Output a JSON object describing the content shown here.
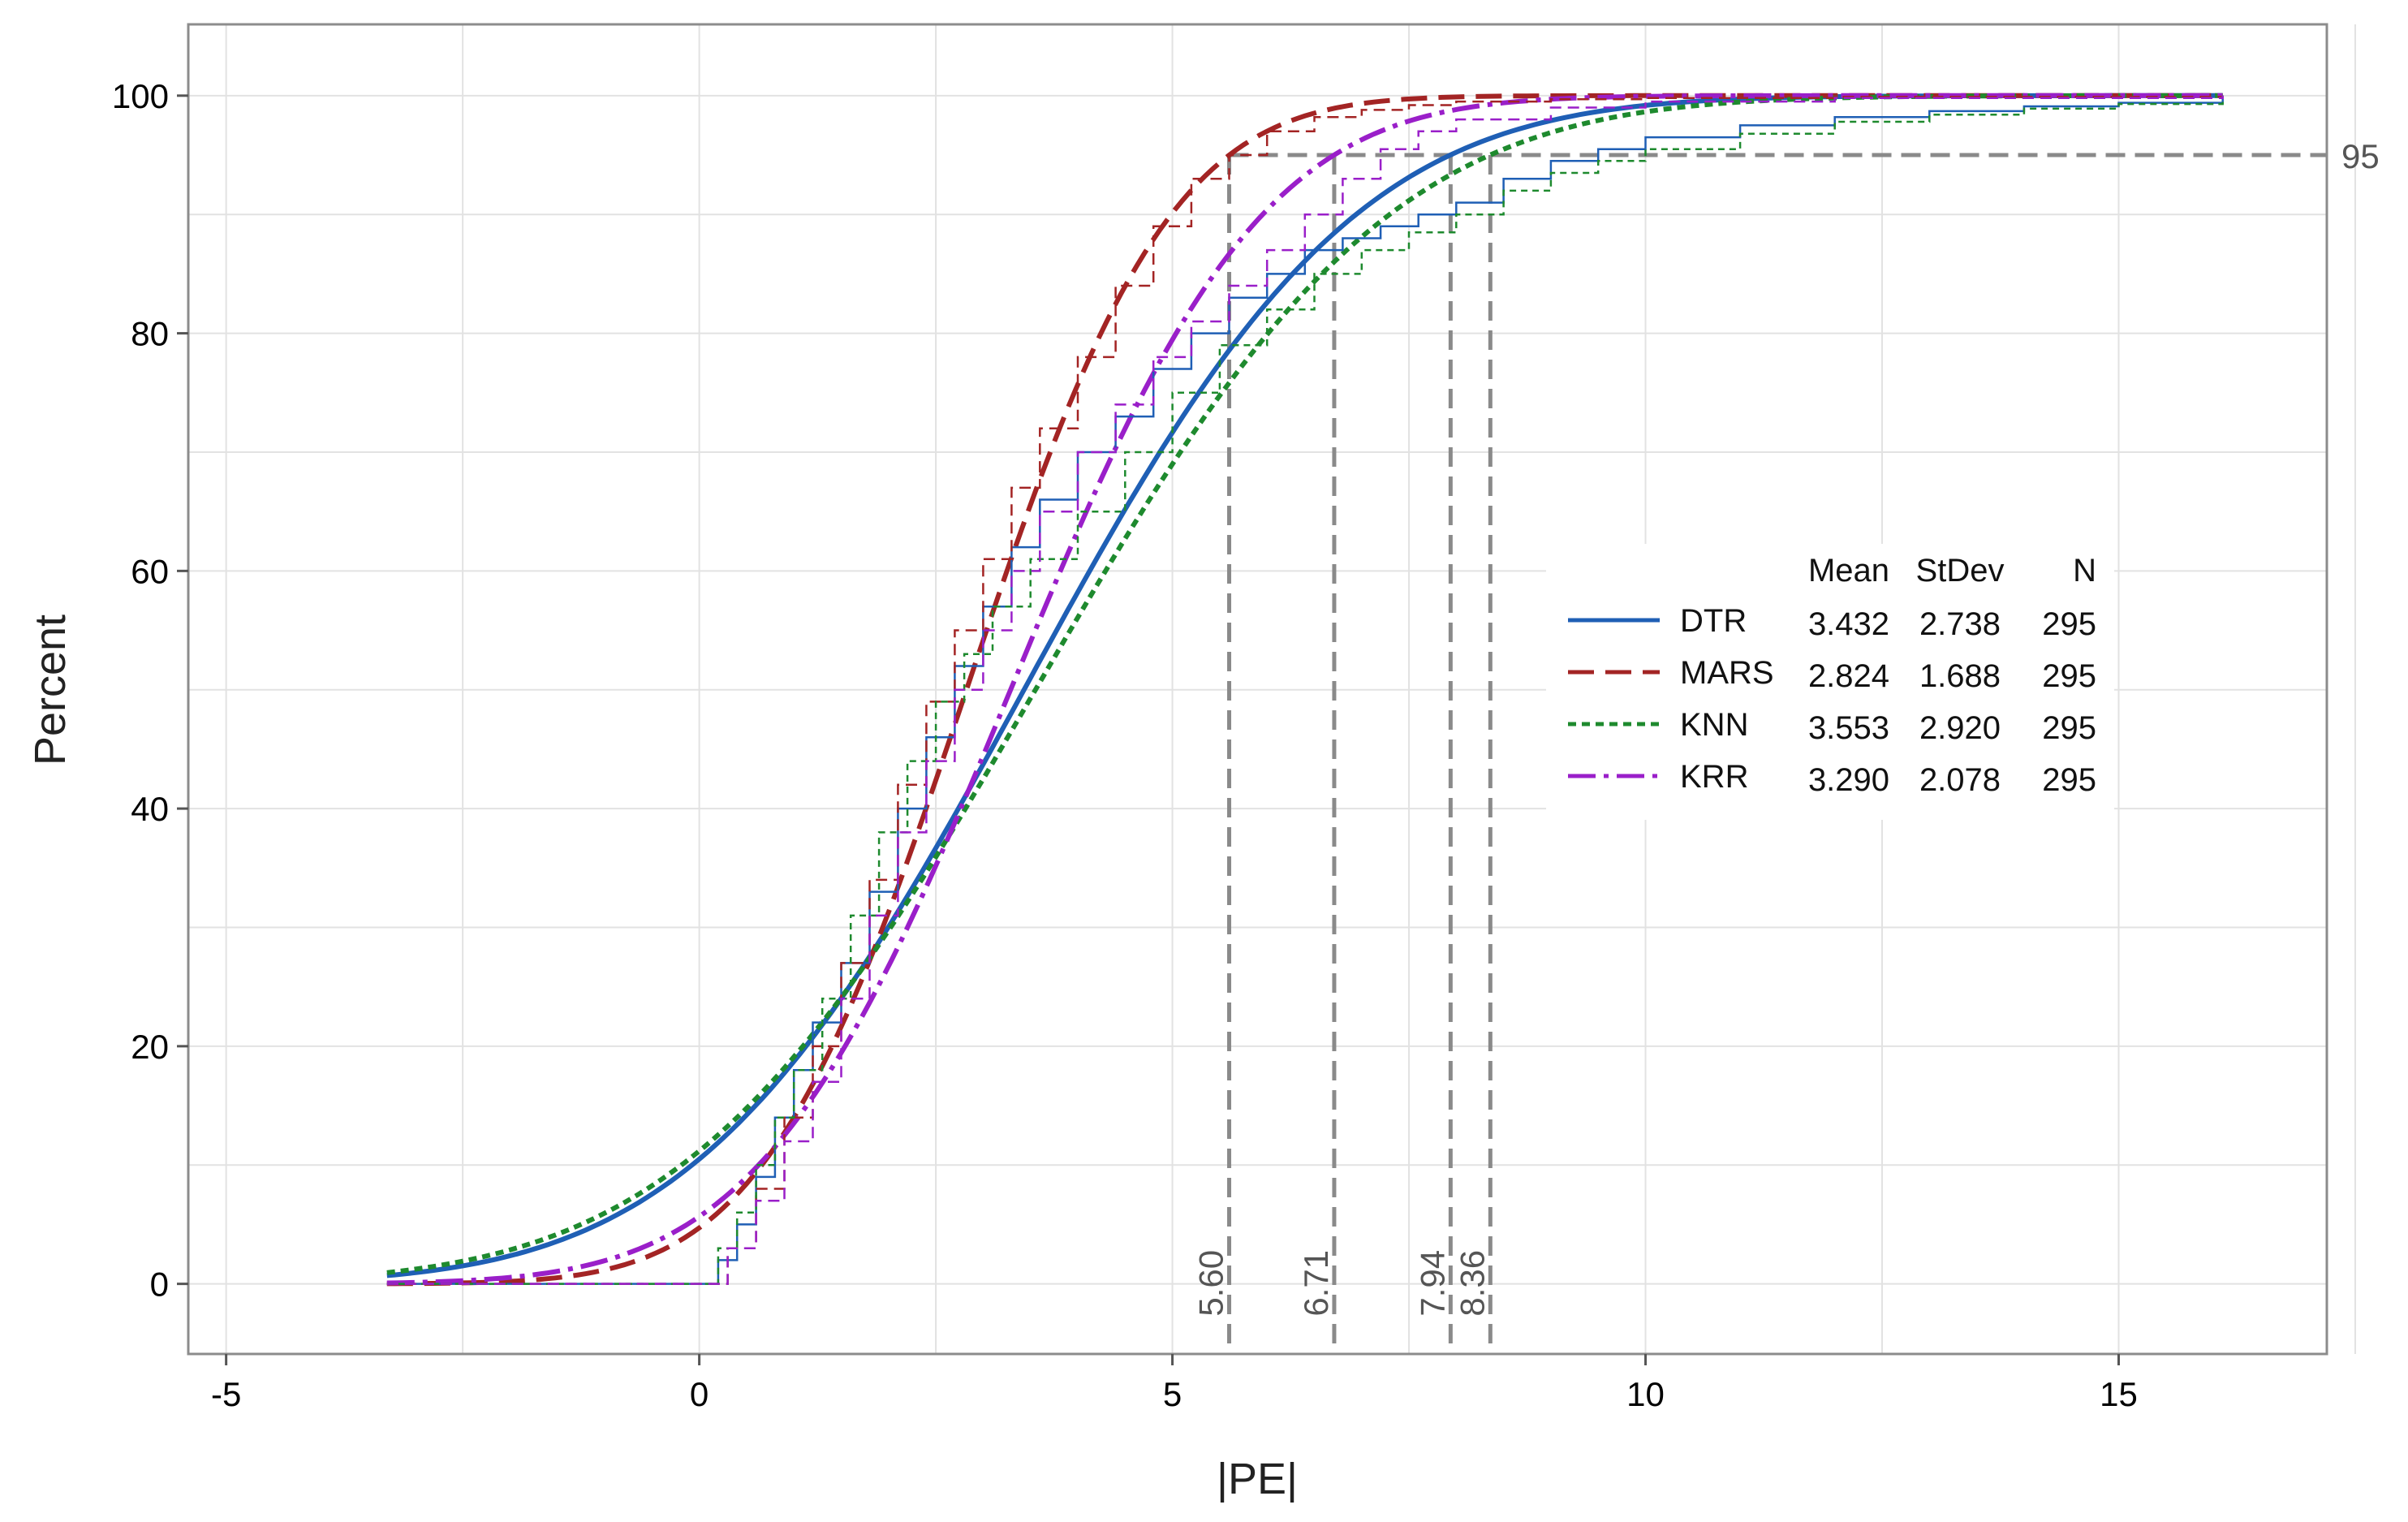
{
  "chart_data": {
    "type": "line",
    "title": "",
    "xlabel": "|PE|",
    "ylabel": "Percent",
    "xlim": [
      -5.4,
      17.2
    ],
    "ylim": [
      -5.9,
      106
    ],
    "grid": true,
    "x_ticks": [
      -5,
      0,
      5,
      10,
      15
    ],
    "x_tick_labels": [
      "-5",
      "0",
      "5",
      "10",
      "15"
    ],
    "y_ticks": [
      0,
      20,
      40,
      60,
      80,
      100
    ],
    "y_tick_labels": [
      "0",
      "20",
      "40",
      "60",
      "80",
      "100"
    ],
    "fit_x_range": [
      -3.3,
      16.1
    ],
    "legend": {
      "placement": "center-right",
      "header": {
        "mean": "Mean",
        "stdev": "StDev",
        "n": "N"
      },
      "rows": [
        {
          "name": "DTR",
          "mean": "3.432",
          "stdev": "2.738",
          "n": "295",
          "color": "#1f5fb5",
          "style": "solid"
        },
        {
          "name": "MARS",
          "mean": "2.824",
          "stdev": "1.688",
          "n": "295",
          "color": "#a32424",
          "style": "dash"
        },
        {
          "name": "KNN",
          "mean": "3.553",
          "stdev": "2.920",
          "n": "295",
          "color": "#1e8a2e",
          "style": "dot"
        },
        {
          "name": "KRR",
          "mean": "3.290",
          "stdev": "2.078",
          "n": "295",
          "color": "#9a1fc9",
          "style": "dashdot"
        }
      ]
    },
    "series": [
      {
        "name": "DTR",
        "mean": 3.432,
        "stdev": 2.738,
        "color": "#1f5fb5",
        "dasharray": "",
        "empirical": [
          [
            0,
            0
          ],
          [
            0.2,
            2
          ],
          [
            0.4,
            5
          ],
          [
            0.6,
            9
          ],
          [
            0.8,
            14
          ],
          [
            1.0,
            18
          ],
          [
            1.2,
            22
          ],
          [
            1.5,
            27
          ],
          [
            1.8,
            33
          ],
          [
            2.1,
            40
          ],
          [
            2.4,
            46
          ],
          [
            2.7,
            52
          ],
          [
            3.0,
            57
          ],
          [
            3.3,
            62
          ],
          [
            3.6,
            66
          ],
          [
            4.0,
            70
          ],
          [
            4.4,
            73
          ],
          [
            4.8,
            77
          ],
          [
            5.2,
            80
          ],
          [
            5.6,
            83
          ],
          [
            6.0,
            85
          ],
          [
            6.4,
            87
          ],
          [
            6.8,
            88
          ],
          [
            7.2,
            89
          ],
          [
            7.6,
            90
          ],
          [
            8.0,
            91
          ],
          [
            8.5,
            93
          ],
          [
            9.0,
            94.5
          ],
          [
            9.5,
            95.5
          ],
          [
            10,
            96.5
          ],
          [
            11,
            97.5
          ],
          [
            12,
            98.2
          ],
          [
            13,
            98.7
          ],
          [
            14,
            99.1
          ],
          [
            15,
            99.4
          ],
          [
            16.1,
            100
          ]
        ]
      },
      {
        "name": "MARS",
        "mean": 2.824,
        "stdev": 1.688,
        "color": "#a32424",
        "dasharray": "32,14",
        "empirical": [
          [
            0,
            0
          ],
          [
            0.3,
            3
          ],
          [
            0.6,
            8
          ],
          [
            0.9,
            14
          ],
          [
            1.2,
            20
          ],
          [
            1.5,
            27
          ],
          [
            1.8,
            34
          ],
          [
            2.1,
            42
          ],
          [
            2.4,
            49
          ],
          [
            2.7,
            55
          ],
          [
            3.0,
            61
          ],
          [
            3.3,
            67
          ],
          [
            3.6,
            72
          ],
          [
            4.0,
            78
          ],
          [
            4.4,
            84
          ],
          [
            4.8,
            89
          ],
          [
            5.2,
            93
          ],
          [
            5.6,
            95
          ],
          [
            6.0,
            97
          ],
          [
            6.5,
            98.2
          ],
          [
            7.0,
            98.8
          ],
          [
            7.5,
            99.2
          ],
          [
            8.0,
            99.5
          ],
          [
            9.0,
            99.7
          ],
          [
            10,
            99.8
          ],
          [
            12,
            99.9
          ],
          [
            16.1,
            100
          ]
        ]
      },
      {
        "name": "KNN",
        "mean": 3.553,
        "stdev": 2.92,
        "color": "#1e8a2e",
        "dasharray": "10,7",
        "empirical": [
          [
            0,
            0
          ],
          [
            0.2,
            3
          ],
          [
            0.4,
            6
          ],
          [
            0.6,
            10
          ],
          [
            0.8,
            14
          ],
          [
            1.0,
            18
          ],
          [
            1.3,
            24
          ],
          [
            1.6,
            31
          ],
          [
            1.9,
            38
          ],
          [
            2.2,
            44
          ],
          [
            2.5,
            49
          ],
          [
            2.8,
            53
          ],
          [
            3.1,
            57
          ],
          [
            3.5,
            61
          ],
          [
            4.0,
            65
          ],
          [
            4.5,
            70
          ],
          [
            5.0,
            75
          ],
          [
            5.5,
            79
          ],
          [
            6.0,
            82
          ],
          [
            6.5,
            85
          ],
          [
            7.0,
            87
          ],
          [
            7.5,
            88.5
          ],
          [
            8.0,
            90
          ],
          [
            8.5,
            92
          ],
          [
            9.0,
            93.5
          ],
          [
            9.5,
            94.5
          ],
          [
            10,
            95.5
          ],
          [
            11,
            96.8
          ],
          [
            12,
            97.8
          ],
          [
            13,
            98.4
          ],
          [
            14,
            98.9
          ],
          [
            15,
            99.3
          ],
          [
            16.1,
            100
          ]
        ]
      },
      {
        "name": "KRR",
        "mean": 3.29,
        "stdev": 2.078,
        "color": "#9a1fc9",
        "dasharray": "34,10,6,10",
        "empirical": [
          [
            0,
            0
          ],
          [
            0.3,
            3
          ],
          [
            0.6,
            7
          ],
          [
            0.9,
            12
          ],
          [
            1.2,
            17
          ],
          [
            1.5,
            24
          ],
          [
            1.8,
            31
          ],
          [
            2.1,
            38
          ],
          [
            2.4,
            44
          ],
          [
            2.7,
            50
          ],
          [
            3.0,
            55
          ],
          [
            3.3,
            60
          ],
          [
            3.6,
            65
          ],
          [
            4.0,
            70
          ],
          [
            4.4,
            74
          ],
          [
            4.8,
            78
          ],
          [
            5.2,
            81
          ],
          [
            5.6,
            84
          ],
          [
            6.0,
            87
          ],
          [
            6.4,
            90
          ],
          [
            6.8,
            93
          ],
          [
            7.2,
            95.5
          ],
          [
            7.6,
            97
          ],
          [
            8.0,
            98
          ],
          [
            9.0,
            99
          ],
          [
            10,
            99.5
          ],
          [
            12,
            99.8
          ],
          [
            16.1,
            100
          ]
        ]
      }
    ],
    "reference_lines": {
      "horizontal": {
        "y": 95,
        "label": "95"
      },
      "vertical": [
        {
          "x": 5.6,
          "label": "5.60"
        },
        {
          "x": 6.71,
          "label": "6.71"
        },
        {
          "x": 7.94,
          "label": "7.94"
        },
        {
          "x": 8.36,
          "label": "8.36"
        }
      ]
    }
  }
}
